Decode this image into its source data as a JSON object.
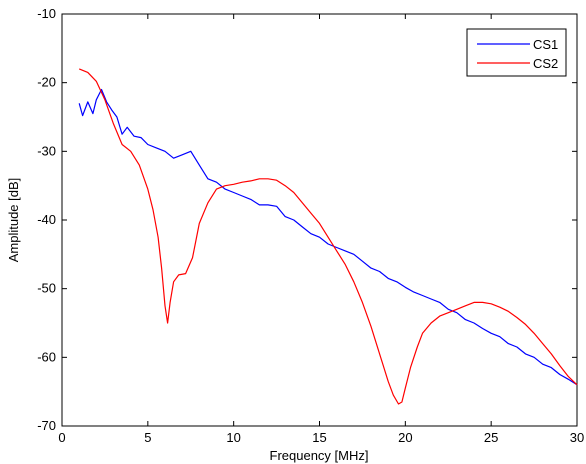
{
  "chart_data": {
    "type": "line",
    "title": "",
    "xlabel": "Frequency [MHz]",
    "ylabel": "Amplitude [dB]",
    "xlim": [
      0,
      30
    ],
    "ylim": [
      -70,
      -10
    ],
    "xticks": [
      0,
      5,
      10,
      15,
      20,
      25,
      30
    ],
    "yticks": [
      -70,
      -60,
      -50,
      -40,
      -30,
      -20,
      -10
    ],
    "grid": false,
    "legend_position": "top-right",
    "series": [
      {
        "name": "CS1",
        "color": "#0000ff",
        "x": [
          1.0,
          1.2,
          1.5,
          1.8,
          2.0,
          2.3,
          2.6,
          2.9,
          3.2,
          3.5,
          3.8,
          4.2,
          4.6,
          5.0,
          5.5,
          6.0,
          6.5,
          7.0,
          7.5,
          8.0,
          8.5,
          9.0,
          9.5,
          10.0,
          10.5,
          11.0,
          11.5,
          12.0,
          12.5,
          13.0,
          13.5,
          14.0,
          14.5,
          15.0,
          15.5,
          16.0,
          16.5,
          17.0,
          17.5,
          18.0,
          18.5,
          19.0,
          19.5,
          20.0,
          20.5,
          21.0,
          21.5,
          22.0,
          22.5,
          23.0,
          23.5,
          24.0,
          24.5,
          25.0,
          25.5,
          26.0,
          26.5,
          27.0,
          27.5,
          28.0,
          28.5,
          29.0,
          29.5,
          30.0
        ],
        "y": [
          -23.0,
          -24.8,
          -22.8,
          -24.5,
          -22.5,
          -21.0,
          -22.8,
          -24.0,
          -25.0,
          -27.5,
          -26.5,
          -27.8,
          -28.0,
          -29.0,
          -29.5,
          -30.0,
          -31.0,
          -30.5,
          -30.0,
          -32.0,
          -34.0,
          -34.5,
          -35.5,
          -36.0,
          -36.5,
          -37.0,
          -37.8,
          -37.8,
          -38.0,
          -39.5,
          -40.0,
          -41.0,
          -42.0,
          -42.5,
          -43.5,
          -44.0,
          -44.5,
          -45.0,
          -46.0,
          -47.0,
          -47.5,
          -48.5,
          -49.0,
          -49.8,
          -50.5,
          -51.0,
          -51.5,
          -52.0,
          -53.0,
          -53.5,
          -54.5,
          -55.0,
          -55.8,
          -56.5,
          -57.0,
          -58.0,
          -58.5,
          -59.5,
          -60.0,
          -61.0,
          -61.5,
          -62.5,
          -63.2,
          -64.0
        ]
      },
      {
        "name": "CS2",
        "color": "#ff0000",
        "x": [
          1.0,
          1.5,
          2.0,
          2.5,
          3.0,
          3.5,
          4.0,
          4.5,
          5.0,
          5.3,
          5.6,
          5.8,
          6.0,
          6.15,
          6.3,
          6.5,
          6.8,
          7.2,
          7.6,
          7.8,
          8.0,
          8.5,
          9.0,
          9.5,
          10.0,
          10.5,
          11.0,
          11.5,
          12.0,
          12.5,
          13.0,
          13.5,
          14.0,
          14.5,
          15.0,
          15.5,
          16.0,
          16.5,
          17.0,
          17.5,
          18.0,
          18.5,
          19.0,
          19.3,
          19.6,
          19.8,
          20.0,
          20.3,
          20.7,
          21.0,
          21.5,
          22.0,
          22.5,
          23.0,
          23.5,
          24.0,
          24.5,
          25.0,
          25.5,
          26.0,
          26.5,
          27.0,
          27.5,
          28.0,
          28.5,
          29.0,
          29.5,
          30.0
        ],
        "y": [
          -18.0,
          -18.5,
          -19.8,
          -22.5,
          -26.0,
          -29.0,
          -30.0,
          -32.0,
          -35.5,
          -38.5,
          -42.5,
          -47.0,
          -52.5,
          -55.0,
          -52.0,
          -49.0,
          -48.0,
          -47.8,
          -45.5,
          -43.0,
          -40.5,
          -37.5,
          -35.5,
          -35.0,
          -34.8,
          -34.5,
          -34.3,
          -34.0,
          -34.0,
          -34.2,
          -35.0,
          -36.0,
          -37.5,
          -39.0,
          -40.5,
          -42.5,
          -44.5,
          -46.5,
          -49.0,
          -52.0,
          -55.5,
          -59.5,
          -63.5,
          -65.5,
          -66.8,
          -66.5,
          -64.5,
          -61.5,
          -58.5,
          -56.5,
          -55.0,
          -54.0,
          -53.5,
          -53.0,
          -52.5,
          -52.0,
          -52.0,
          -52.2,
          -52.7,
          -53.3,
          -54.2,
          -55.2,
          -56.5,
          -58.0,
          -59.5,
          -61.2,
          -62.8,
          -64.0
        ]
      }
    ]
  }
}
